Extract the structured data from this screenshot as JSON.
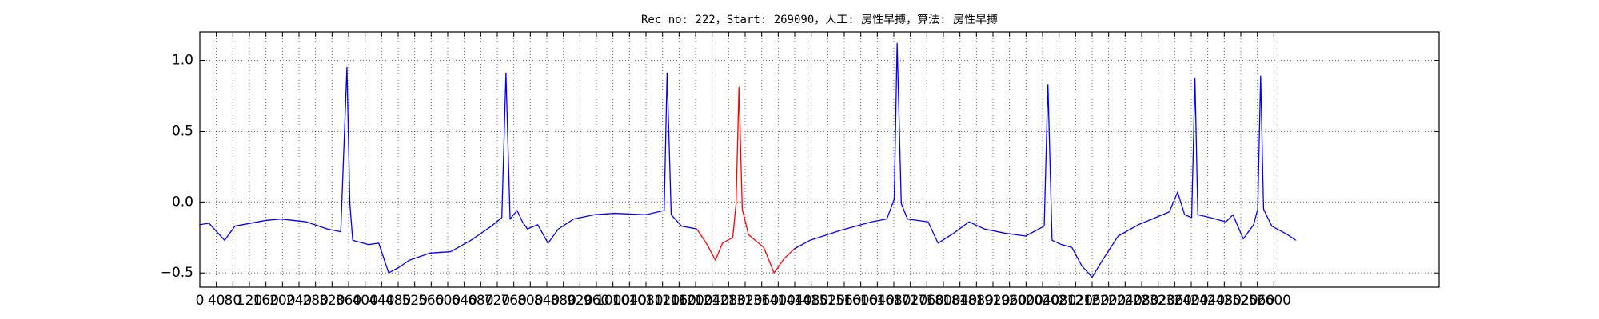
{
  "chart_data": {
    "type": "line",
    "title": "Rec_no: 222，Start: 269090，人工: 房性早搏，算法: 房性早搏",
    "xlim": [
      0,
      3000
    ],
    "ylim": [
      -0.6,
      1.2
    ],
    "xticks": [
      0,
      40,
      80,
      120,
      160,
      200,
      240,
      280,
      320,
      360,
      400,
      440,
      480,
      520,
      560,
      600,
      640,
      680,
      720,
      760,
      800,
      840,
      880,
      920,
      960,
      1000,
      1040,
      1080,
      1120,
      1160,
      1200,
      1240,
      1280,
      1320,
      1360,
      1400,
      1440,
      1480,
      1520,
      1560,
      1600,
      1640,
      1680,
      1720,
      1760,
      1800,
      1840,
      1880,
      1920,
      1960,
      2000,
      2040,
      2080,
      2120,
      2160,
      2200,
      2240,
      2280,
      2320,
      2360,
      2400,
      2440,
      2480,
      2520,
      2560,
      2600
    ],
    "yticks": [
      {
        "value": -0.5,
        "label": "−0.5"
      },
      {
        "value": 0,
        "label": "0.0"
      },
      {
        "value": 0.5,
        "label": "0.5"
      },
      {
        "value": 1,
        "label": "1.0"
      }
    ],
    "grid": true,
    "series": [
      {
        "color": "#0000ff",
        "x": [
          0,
          22,
          60,
          85,
          159,
          196,
          258,
          308,
          341,
          356,
          363,
          370,
          408,
          433,
          457,
          482,
          507,
          557,
          607,
          656,
          706,
          731,
          741,
          751,
          768,
          781,
          793,
          818,
          843,
          868,
          905,
          955,
          1004,
          1079,
          1124,
          1131,
          1141,
          1166,
          1203
        ],
        "values": [
          -0.16,
          -0.15,
          -0.27,
          -0.17,
          -0.13,
          -0.12,
          -0.14,
          -0.19,
          -0.21,
          0.95,
          -0.01,
          -0.27,
          -0.3,
          -0.29,
          -0.5,
          -0.46,
          -0.41,
          -0.36,
          -0.35,
          -0.27,
          -0.17,
          -0.11,
          0.91,
          -0.12,
          -0.06,
          -0.14,
          -0.19,
          -0.16,
          -0.29,
          -0.19,
          -0.12,
          -0.09,
          -0.08,
          -0.09,
          -0.06,
          0.91,
          -0.09,
          -0.17,
          -0.19
        ]
      },
      {
        "color": "#ff0000",
        "x": [
          1203,
          1228,
          1248,
          1265,
          1290,
          1298,
          1305,
          1313,
          1328,
          1365,
          1390,
          1414,
          1439
        ],
        "values": [
          -0.19,
          -0.3,
          -0.41,
          -0.29,
          -0.25,
          -0.01,
          0.81,
          -0.05,
          -0.23,
          -0.32,
          -0.5,
          -0.4,
          -0.33
        ]
      },
      {
        "color": "#0000ff",
        "x": [
          1439,
          1477,
          1551,
          1626,
          1663,
          1681,
          1688,
          1698,
          1713,
          1763,
          1787,
          1825,
          1862,
          1899,
          1949,
          1999,
          2044,
          2053,
          2063,
          2086,
          2111,
          2135,
          2160,
          2185,
          2223,
          2272,
          2322,
          2347,
          2367,
          2384,
          2401,
          2409,
          2416,
          2446,
          2484,
          2501,
          2526,
          2551,
          2561,
          2568,
          2575,
          2595,
          2633,
          2653
        ],
        "values": [
          -0.33,
          -0.27,
          -0.2,
          -0.14,
          -0.12,
          0.02,
          1.12,
          -0.01,
          -0.12,
          -0.14,
          -0.29,
          -0.22,
          -0.14,
          -0.19,
          -0.22,
          -0.24,
          -0.17,
          0.83,
          -0.27,
          -0.3,
          -0.32,
          -0.45,
          -0.53,
          -0.41,
          -0.24,
          -0.16,
          -0.1,
          -0.07,
          0.07,
          -0.09,
          -0.11,
          0.87,
          -0.09,
          -0.11,
          -0.14,
          -0.09,
          -0.26,
          -0.16,
          -0.05,
          0.89,
          -0.05,
          -0.17,
          -0.23,
          -0.27
        ]
      }
    ]
  }
}
